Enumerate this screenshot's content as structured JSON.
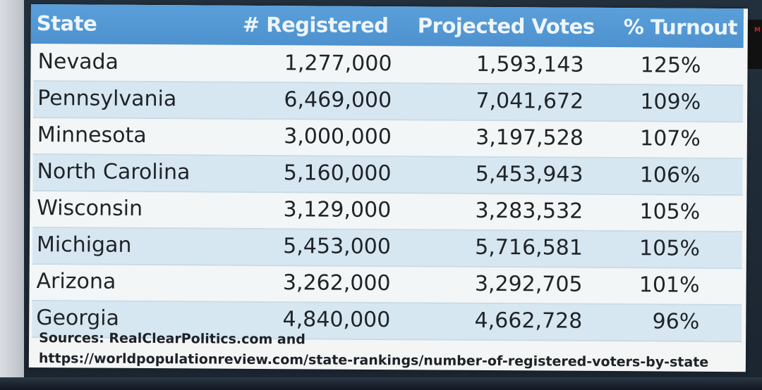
{
  "table": {
    "headers": {
      "state": "State",
      "registered": "# Registered",
      "projected": "Projected Votes",
      "turnout": "% Turnout"
    },
    "rows": [
      {
        "state": "Nevada",
        "registered": "1,277,000",
        "projected": "1,593,143",
        "turnout": "125%"
      },
      {
        "state": "Pennsylvania",
        "registered": "6,469,000",
        "projected": "7,041,672",
        "turnout": "109%"
      },
      {
        "state": "Minnesota",
        "registered": "3,000,000",
        "projected": "3,197,528",
        "turnout": "107%"
      },
      {
        "state": "North Carolina",
        "registered": "5,160,000",
        "projected": "5,453,943",
        "turnout": "106%"
      },
      {
        "state": "Wisconsin",
        "registered": "3,129,000",
        "projected": "3,283,532",
        "turnout": "105%"
      },
      {
        "state": "Michigan",
        "registered": "5,453,000",
        "projected": "5,716,581",
        "turnout": "105%"
      },
      {
        "state": "Arizona",
        "registered": "3,262,000",
        "projected": "3,292,705",
        "turnout": "101%"
      },
      {
        "state": "Georgia",
        "registered": "4,840,000",
        "projected": "4,662,728",
        "turnout": "96%"
      }
    ]
  },
  "sources": {
    "line1": "Sources: RealClearPolitics.com and",
    "line2": "https://worldpopulationreview.com/state-rankings/number-of-registered-voters-by-state"
  },
  "colors": {
    "header_bg": "#4d92cf",
    "header_text": "#eef5fb",
    "row_alt": "#d7e7f1",
    "row_plain": "#f3f6f6"
  }
}
